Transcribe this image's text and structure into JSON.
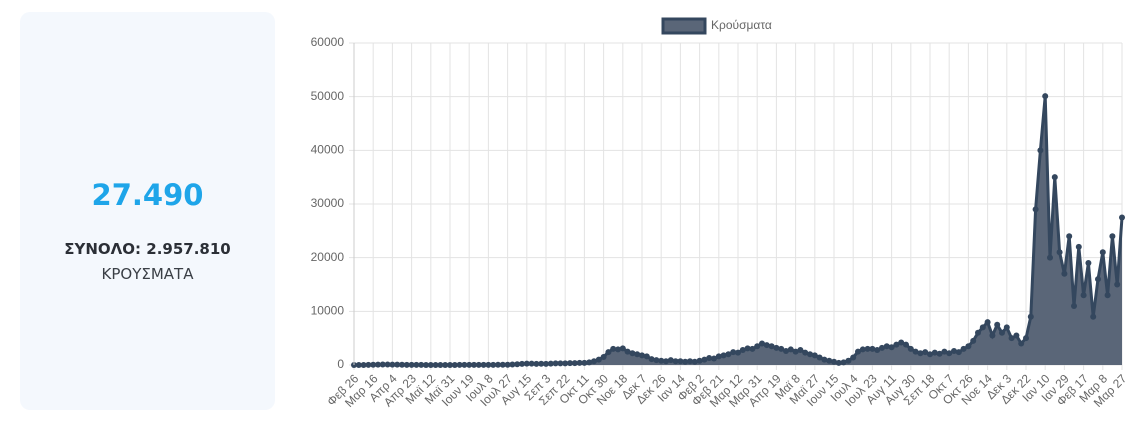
{
  "summary": {
    "latest": "27.490",
    "total": "ΣΥΝΟΛΟ: 2.957.810",
    "unit": "ΚΡΟΥΣΜΑΤΑ"
  },
  "chart_data": {
    "type": "line",
    "categories": [
      "Φεβ 26",
      null,
      null,
      null,
      "Μαρ 16",
      null,
      null,
      null,
      "Απρ 4",
      null,
      null,
      null,
      "Απρ 23",
      null,
      null,
      null,
      "Μαϊ 12",
      null,
      null,
      null,
      "Μαϊ 31",
      null,
      null,
      null,
      "Ιουν 19",
      null,
      null,
      null,
      "Ιουλ 8",
      null,
      null,
      null,
      "Ιουλ 27",
      null,
      null,
      null,
      "Αυγ 15",
      null,
      null,
      null,
      "Σεπ 3",
      null,
      null,
      null,
      "Σεπ 22",
      null,
      null,
      null,
      "Οκτ 11",
      null,
      null,
      null,
      "Οκτ 30",
      null,
      null,
      null,
      "Νοε 18",
      null,
      null,
      null,
      "Δεκ 7",
      null,
      null,
      null,
      "Δεκ 26",
      null,
      null,
      null,
      "Ιαν 14",
      null,
      null,
      null,
      "Φεβ 2",
      null,
      null,
      null,
      "Φεβ 21",
      null,
      null,
      null,
      "Μαρ 12",
      null,
      null,
      null,
      "Μαρ 31",
      null,
      null,
      null,
      "Απρ 19",
      null,
      null,
      null,
      "Μαϊ 8",
      null,
      null,
      null,
      "Μαϊ 27",
      null,
      null,
      null,
      "Ιουν 15",
      null,
      null,
      null,
      "Ιουλ 4",
      null,
      null,
      null,
      "Ιουλ 23",
      null,
      null,
      null,
      "Αυγ 11",
      null,
      null,
      null,
      "Αυγ 30",
      null,
      null,
      null,
      "Σεπ 18",
      null,
      null,
      null,
      "Οκτ 7",
      null,
      null,
      null,
      "Οκτ 26",
      null,
      null,
      null,
      "Νοε 14",
      null,
      null,
      null,
      "Δεκ 3",
      null,
      null,
      null,
      "Δεκ 22",
      null,
      null,
      null,
      "Ιαν 10",
      null,
      null,
      null,
      "Ιαν 29",
      null,
      null,
      null,
      "Φεβ 17",
      null,
      null,
      null,
      "Μαρ 8",
      null,
      null,
      null,
      "Μαρ 27"
    ],
    "series": [
      {
        "name": "Κρούσματα",
        "color": "#34475e",
        "fill": "#5a6678",
        "values": [
          0,
          3,
          10,
          30,
          50,
          70,
          90,
          100,
          80,
          60,
          40,
          20,
          20,
          15,
          15,
          10,
          10,
          10,
          10,
          10,
          10,
          10,
          15,
          20,
          20,
          15,
          20,
          25,
          25,
          30,
          35,
          40,
          50,
          100,
          150,
          200,
          250,
          250,
          200,
          230,
          200,
          250,
          300,
          300,
          300,
          350,
          350,
          400,
          400,
          500,
          700,
          1000,
          1500,
          2400,
          3000,
          2900,
          3100,
          2500,
          2200,
          2000,
          1800,
          1600,
          1100,
          900,
          800,
          700,
          900,
          700,
          700,
          600,
          700,
          600,
          800,
          1000,
          1300,
          1200,
          1600,
          1800,
          2000,
          2400,
          2300,
          2800,
          3100,
          3000,
          3500,
          4000,
          3700,
          3500,
          3200,
          3000,
          2600,
          2900,
          2500,
          2800,
          2300,
          2000,
          1800,
          1400,
          1000,
          800,
          600,
          400,
          500,
          800,
          1400,
          2500,
          2900,
          3000,
          3000,
          2800,
          3200,
          3500,
          3300,
          3800,
          4200,
          3800,
          3000,
          2500,
          2200,
          2400,
          2000,
          2300,
          2100,
          2500,
          2200,
          2600,
          2400,
          3000,
          3500,
          4500,
          6000,
          7000,
          8000,
          5500,
          7500,
          6000,
          7000,
          5000,
          5500,
          4000,
          5000,
          9000,
          29000,
          40000,
          50100,
          20000,
          35000,
          21000,
          17000,
          24000,
          11000,
          22000,
          13000,
          19000,
          9000,
          16000,
          21000,
          13000,
          24000,
          15000,
          27490
        ]
      }
    ],
    "ylim": [
      0,
      60000
    ],
    "yticks": [
      0,
      10000,
      20000,
      30000,
      40000,
      50000,
      60000
    ],
    "grid": true
  }
}
